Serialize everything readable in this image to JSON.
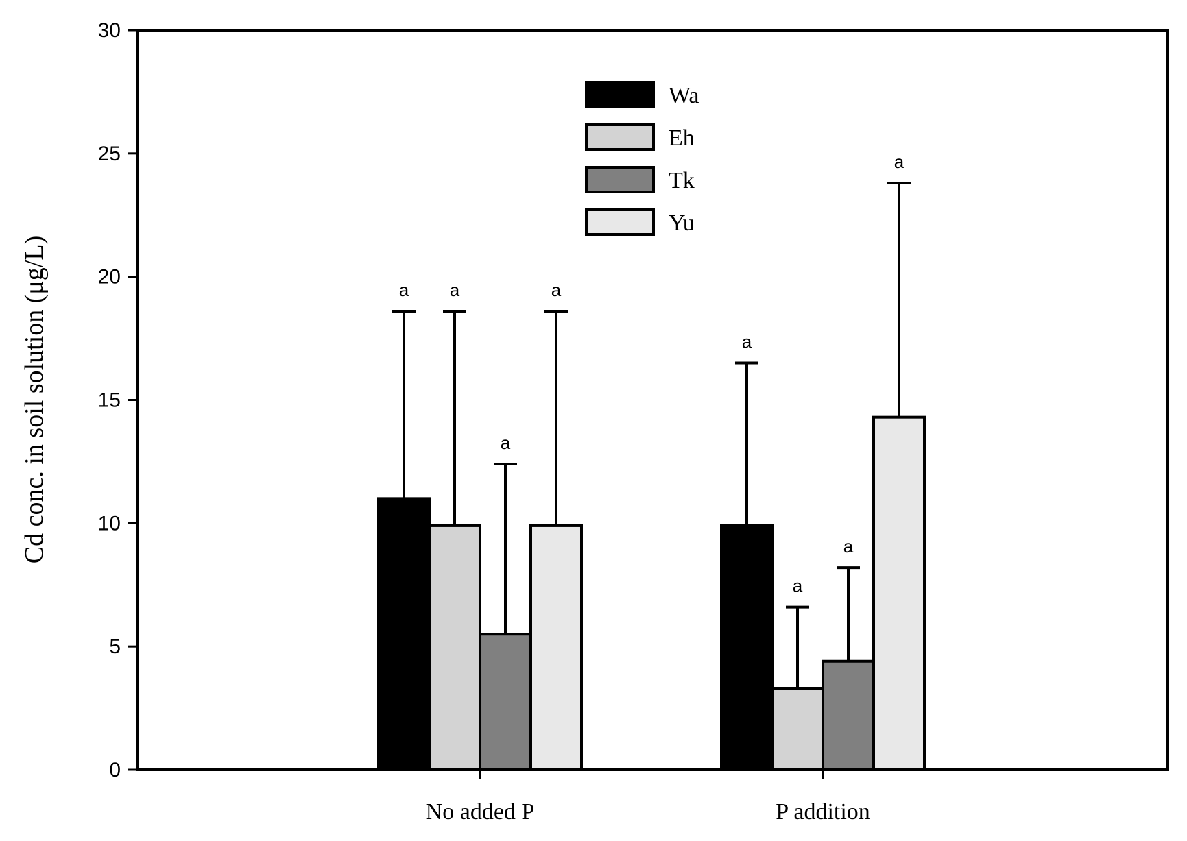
{
  "chart_data": {
    "type": "bar",
    "title": "",
    "xlabel": "",
    "ylabel": "Cd conc. in soil solution (μg/L)",
    "ylim": [
      0,
      30
    ],
    "yticks": [
      0,
      5,
      10,
      15,
      20,
      25,
      30
    ],
    "categories": [
      "No added P",
      "P addition"
    ],
    "series": [
      {
        "name": "Wa",
        "color": "#000000",
        "values": [
          11.0,
          9.9
        ],
        "errors": [
          7.6,
          6.6
        ],
        "labels": [
          "a",
          "a"
        ]
      },
      {
        "name": "Eh",
        "color": "#d3d3d3",
        "values": [
          9.9,
          3.3
        ],
        "errors": [
          8.7,
          3.3
        ],
        "labels": [
          "a",
          "a"
        ]
      },
      {
        "name": "Tk",
        "color": "#808080",
        "values": [
          5.5,
          4.4
        ],
        "errors": [
          6.9,
          3.8
        ],
        "labels": [
          "a",
          "a"
        ]
      },
      {
        "name": "Yu",
        "color": "#e8e8e8",
        "values": [
          9.9,
          14.3
        ],
        "errors": [
          8.7,
          9.5
        ],
        "labels": [
          "a",
          "a"
        ]
      }
    ],
    "legend_position": "top-center"
  }
}
